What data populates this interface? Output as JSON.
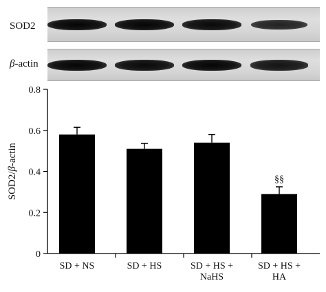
{
  "blots": [
    {
      "label": "SOD2",
      "intensity": [
        1.0,
        1.0,
        0.95,
        0.7
      ]
    },
    {
      "label_prefix": "β",
      "label_suffix": "-actin",
      "intensity": [
        1.0,
        0.95,
        1.0,
        0.85
      ]
    }
  ],
  "chart_data": {
    "type": "bar",
    "categories": [
      [
        "SD + NS"
      ],
      [
        "SD + HS"
      ],
      [
        "SD + HS +",
        "NaHS"
      ],
      [
        "SD + HS +",
        "HA"
      ]
    ],
    "values": [
      0.58,
      0.51,
      0.54,
      0.29
    ],
    "errors": [
      0.035,
      0.027,
      0.04,
      0.035
    ],
    "annotations": [
      "",
      "",
      "",
      "§§"
    ],
    "ylabel_prefix": "SOD2/",
    "ylabel_italic": "β",
    "ylabel_suffix": "-actin",
    "ylim": [
      0,
      0.8
    ],
    "yticks": [
      "0",
      "0.2",
      "0.4",
      "0.6",
      "0.8"
    ],
    "bar_color": "#000000",
    "grid": false
  }
}
